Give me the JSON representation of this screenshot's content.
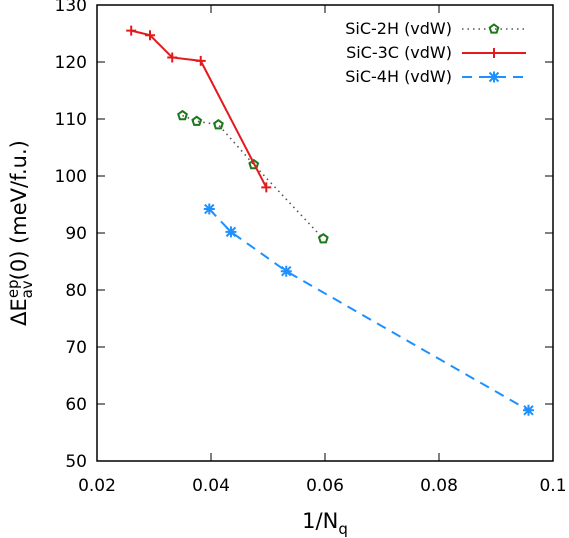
{
  "chart_data": {
    "type": "line",
    "xlabel": {
      "main": "1/N",
      "sub": "q"
    },
    "ylabel": {
      "prefix": "ΔE",
      "sup": "ep",
      "sub": "av",
      "suffix": "(0) (meV/f.u.)"
    },
    "xlim": [
      0.02,
      0.1
    ],
    "ylim": [
      50,
      130
    ],
    "xticks": [
      0.02,
      0.04,
      0.06,
      0.08,
      0.1
    ],
    "xtick_labels": [
      "0.02",
      "0.04",
      "0.06",
      "0.08",
      "0.1"
    ],
    "yticks": [
      50,
      60,
      70,
      80,
      90,
      100,
      110,
      120,
      130
    ],
    "ytick_labels": [
      "50",
      "60",
      "70",
      "80",
      "90",
      "100",
      "110",
      "120",
      "130"
    ],
    "grid": false,
    "legend_position": "top-right",
    "series": [
      {
        "name": "SiC-2H (vdW)",
        "color": "#1a7a1a",
        "line_style": "dotted",
        "marker": "pentagon",
        "x": [
          0.035,
          0.0375,
          0.0413,
          0.0475,
          0.0597
        ],
        "y": [
          110.6,
          109.6,
          109.0,
          102.0,
          89.0
        ]
      },
      {
        "name": "SiC-3C (vdW)",
        "color": "#e31a1c",
        "line_style": "solid",
        "marker": "plus",
        "x": [
          0.026,
          0.0293,
          0.0332,
          0.0382,
          0.0497
        ],
        "y": [
          125.5,
          124.7,
          120.8,
          120.2,
          98.0
        ]
      },
      {
        "name": "SiC-4H (vdW)",
        "color": "#1e90ff",
        "line_style": "dashed",
        "marker": "asterisk",
        "x": [
          0.0397,
          0.0435,
          0.0532,
          0.0957
        ],
        "y": [
          94.2,
          90.2,
          83.3,
          58.9
        ]
      }
    ]
  }
}
